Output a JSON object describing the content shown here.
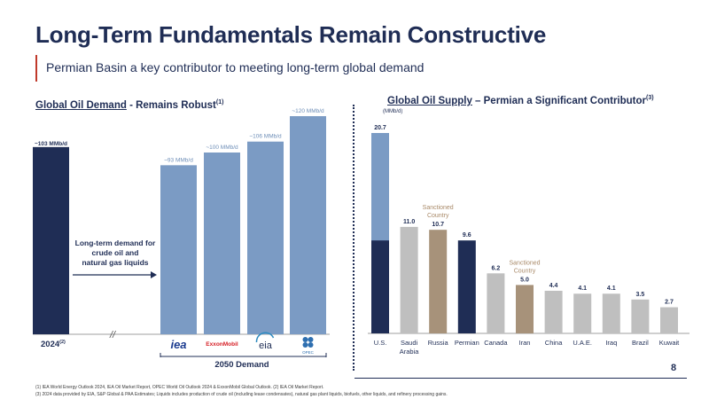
{
  "title": "Long-Term Fundamentals Remain Constructive",
  "subtitle": "Permian Basin a key contributor to meeting long-term global demand",
  "left": {
    "title_underlined": "Global Oil Demand",
    "title_rest": " - Remains Robust",
    "title_sup": "(1)",
    "note_lines": [
      "Long-term demand for",
      "crude oil and",
      "natural gas liquids"
    ],
    "axis_left_label": "2024",
    "axis_left_sup": "(2)",
    "break_mark": "//",
    "group_label": "2050 Demand",
    "logo_texts": [
      "iea",
      "ExxonMobil",
      "eia",
      "OPEC"
    ]
  },
  "right": {
    "title_underlined": "Global Oil Supply",
    "title_rest": " – Permian a Significant Contributor",
    "title_sup": "(3)",
    "unit": "(MMb/d)"
  },
  "page_number": "8",
  "footnotes": [
    "(1) IEA World Energy Outlook 2024, IEA Oil Market Report, OPEC World Oil Outlook 2024 & ExxonMobil Global Outlook. (2) IEA Oil Market Report.",
    "(3) 2024 data provided by EIA, S&P Global & PAA Estimates; Liquids includes production of crude oil (including lease condensates), natural gas plant liquids, biofuels, other liquids, and refinery processing gains."
  ],
  "colors": {
    "navy": "#1f2d55",
    "steel_blue": "#7b9bc4",
    "gray": "#bfbfbf",
    "tan": "#a7927a",
    "sanctioned_text": "#a98a69"
  },
  "chart_data": [
    {
      "type": "bar",
      "categories": [
        "2024",
        "iea",
        "ExxonMobil",
        "eia",
        "OPEC"
      ],
      "values": [
        103,
        93,
        100,
        106,
        120
      ],
      "data_labels": [
        "~103 MMb/d",
        "~93 MMb/d",
        "~100 MMb/d",
        "~106 MMb/d",
        "~120 MMb/d"
      ],
      "colors": [
        "#1f2d55",
        "#7b9bc4",
        "#7b9bc4",
        "#7b9bc4",
        "#7b9bc4"
      ],
      "ylim": [
        0,
        120
      ]
    },
    {
      "type": "bar",
      "categories": [
        "U.S.",
        "Saudi Arabia",
        "Russia",
        "Permian",
        "Canada",
        "Iran",
        "China",
        "U.A.E.",
        "Iraq",
        "Brazil",
        "Kuwait"
      ],
      "values": [
        20.7,
        11.0,
        10.7,
        9.6,
        6.2,
        5.0,
        4.4,
        4.1,
        4.1,
        3.5,
        2.7
      ],
      "data_labels": [
        "20.7",
        "11.0",
        "10.7",
        "9.6",
        "6.2",
        "5.0",
        "4.4",
        "4.1",
        "4.1",
        "3.5",
        "2.7"
      ],
      "colors": [
        "#7b9bc4",
        "#bfbfbf",
        "#a7927a",
        "#1f2d55",
        "#bfbfbf",
        "#a7927a",
        "#bfbfbf",
        "#bfbfbf",
        "#bfbfbf",
        "#bfbfbf",
        "#bfbfbf"
      ],
      "us_permian_portion": 9.6,
      "annotations": [
        {
          "category": "Russia",
          "lines": [
            "Sanctioned",
            "Country"
          ]
        },
        {
          "category": "Iran",
          "lines": [
            "Sanctioned",
            "Country"
          ]
        }
      ],
      "ylim": [
        0,
        20.7
      ]
    }
  ]
}
